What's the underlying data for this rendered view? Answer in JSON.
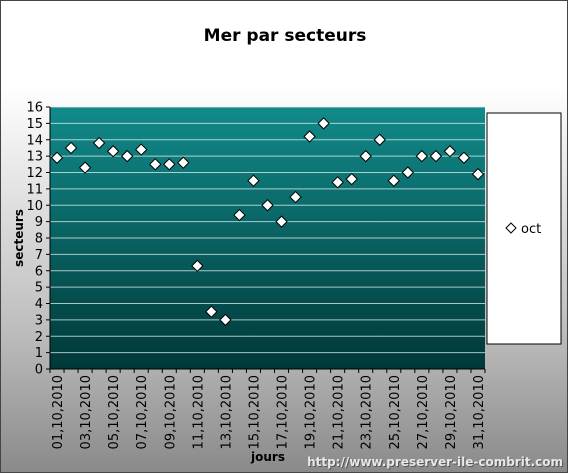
{
  "chart_data": {
    "type": "scatter",
    "title": "Mer par secteurs",
    "xlabel": "jours",
    "ylabel": "secteurs",
    "ylim": [
      0,
      16
    ],
    "yticks": [
      "0",
      "1",
      "2",
      "3",
      "4",
      "5",
      "6",
      "7",
      "8",
      "9",
      "10",
      "11",
      "12",
      "13",
      "14",
      "15",
      "16"
    ],
    "categories": [
      "01,10,2010",
      "02,10,2010",
      "03,10,2010",
      "04,10,2010",
      "05,10,2010",
      "06,10,2010",
      "07,10,2010",
      "08,10,2010",
      "09,10,2010",
      "10,10,2010",
      "11,10,2010",
      "12,10,2010",
      "13,10,2010",
      "14,10,2010",
      "15,10,2010",
      "16,10,2010",
      "17,10,2010",
      "18,10,2010",
      "19,10,2010",
      "20,10,2010",
      "21,10,2010",
      "22,10,2010",
      "23,10,2010",
      "24,10,2010",
      "25,10,2010",
      "26,10,2010",
      "27,10,2010",
      "28,10,2010",
      "29,10,2010",
      "30,10,2010",
      "31,10,2010"
    ],
    "category_labels": [
      "01,10,2010",
      "",
      "03,10,2010",
      "",
      "05,10,2010",
      "",
      "07,10,2010",
      "",
      "09,10,2010",
      "",
      "11,10,2010",
      "",
      "13,10,2010",
      "",
      "15,10,2010",
      "",
      "17,10,2010",
      "",
      "19,10,2010",
      "",
      "21,10,2010",
      "",
      "23,10,2010",
      "",
      "25,10,2010",
      "",
      "27,10,2010",
      "",
      "29,10,2010",
      "",
      "31,10,2010"
    ],
    "series": [
      {
        "name": "oct",
        "marker": "diamond",
        "values": [
          12.9,
          13.5,
          12.3,
          13.8,
          13.3,
          13.0,
          13.4,
          12.5,
          12.5,
          12.6,
          6.3,
          3.5,
          3.0,
          9.4,
          11.5,
          10.0,
          9.0,
          10.5,
          14.2,
          15.0,
          11.4,
          11.6,
          13.0,
          14.0,
          11.5,
          12.0,
          13.0,
          13.0,
          13.3,
          12.9,
          11.9
        ]
      }
    ],
    "grid": true,
    "legend_position": "right",
    "colors": {
      "plot_top": "#128a8a",
      "plot_bottom": "#003838",
      "marker_fill": "#ffffff",
      "gridline": "#e0f0f0"
    }
  },
  "footer": "http://www.preserver-ile-combrit.com"
}
